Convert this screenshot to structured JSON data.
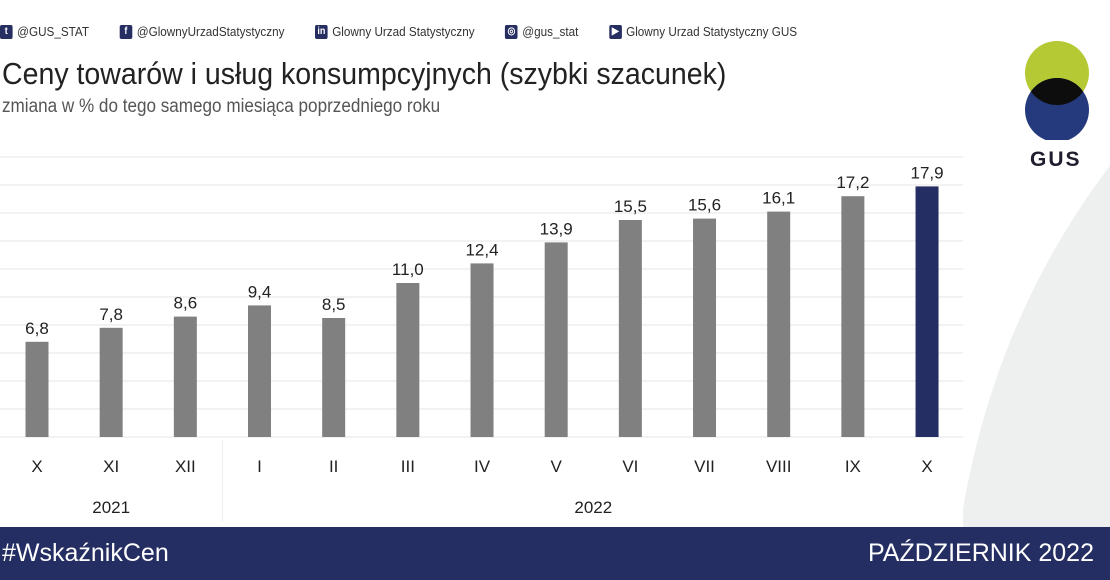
{
  "social": [
    {
      "icon": "twitter-icon",
      "label": "@GUS_STAT"
    },
    {
      "icon": "facebook-icon",
      "label": "@GlownyUrzadStatystyczny"
    },
    {
      "icon": "linkedin-icon",
      "label": "Glowny Urzad Statystyczny"
    },
    {
      "icon": "instagram-icon",
      "label": "@gus_stat"
    },
    {
      "icon": "youtube-icon",
      "label": "Glowny Urzad Statystyczny GUS"
    }
  ],
  "logo_text": "GUS",
  "footer": {
    "hashtag": "#WskaźnikCen",
    "date": "PAŹDZIERNIK 2022"
  },
  "colors": {
    "bar": "#808080",
    "highlight": "#252e62",
    "footer": "#252e62",
    "logo_green": "#b5c935",
    "logo_blue": "#253a7c"
  },
  "chart_data": {
    "type": "bar",
    "title": "Ceny towarów i usług konsumpcyjnych (szybki szacunek)",
    "subtitle": "zmiana w % do tego samego miesiąca poprzedniego roku",
    "categories": [
      "X",
      "XI",
      "XII",
      "I",
      "II",
      "III",
      "IV",
      "V",
      "VI",
      "VII",
      "VIII",
      "IX",
      "X"
    ],
    "groups": [
      {
        "label": "2021",
        "count": 3
      },
      {
        "label": "2022",
        "count": 10
      }
    ],
    "values": [
      6.8,
      7.8,
      8.6,
      9.4,
      8.5,
      11.0,
      12.4,
      13.9,
      15.5,
      15.6,
      16.1,
      17.2,
      17.9
    ],
    "data_labels": [
      "6,8",
      "7,8",
      "8,6",
      "9,4",
      "8,5",
      "11,0",
      "12,4",
      "13,9",
      "15,5",
      "15,6",
      "16,1",
      "17,2",
      "17,9"
    ],
    "highlight_index": 12,
    "ylim": [
      0,
      20
    ],
    "grid": true
  }
}
